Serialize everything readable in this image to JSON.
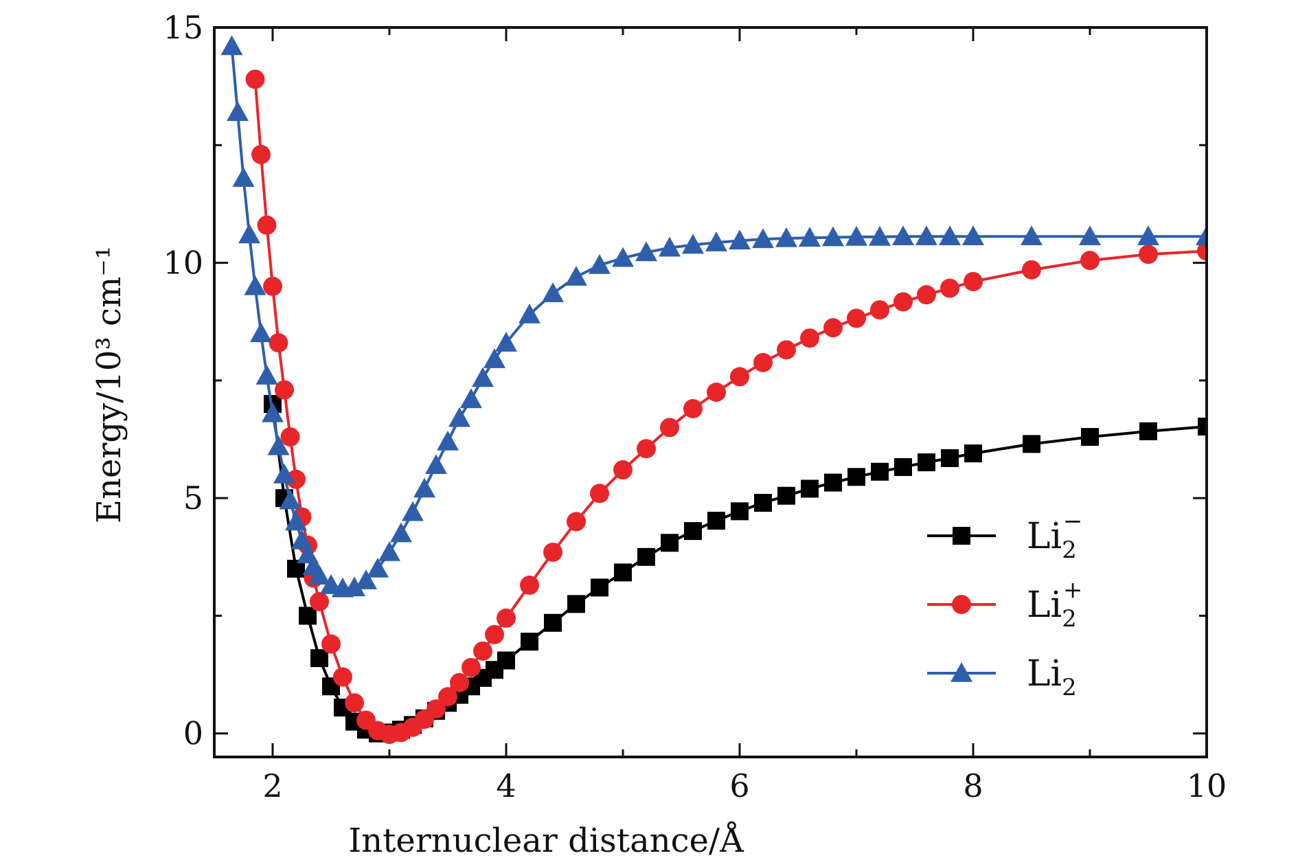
{
  "chart_data": {
    "type": "line",
    "title": "",
    "xlabel": "Internuclear distance/Å",
    "ylabel": "Energy/10³ cm⁻¹",
    "xlim": [
      1.5,
      10
    ],
    "ylim": [
      -0.5,
      15
    ],
    "xticks": [
      2,
      4,
      6,
      8,
      10
    ],
    "yticks": [
      0,
      5,
      10,
      15
    ],
    "xtick_labels": [
      "2",
      "4",
      "6",
      "8",
      "10"
    ],
    "ytick_labels": [
      "0",
      "5",
      "10",
      "15"
    ],
    "grid": false,
    "legend_position": "lower-right",
    "series": [
      {
        "name": "Li₂⁻",
        "legend_base": "Li",
        "legend_sub": "2",
        "legend_sup": "−",
        "color": "#000000",
        "marker": "square",
        "x": [
          2.0,
          2.1,
          2.2,
          2.3,
          2.4,
          2.5,
          2.6,
          2.7,
          2.8,
          2.9,
          3.0,
          3.1,
          3.2,
          3.3,
          3.4,
          3.5,
          3.6,
          3.7,
          3.8,
          3.9,
          4.0,
          4.2,
          4.4,
          4.6,
          4.8,
          5.0,
          5.2,
          5.4,
          5.6,
          5.8,
          6.0,
          6.2,
          6.4,
          6.6,
          6.8,
          7.0,
          7.2,
          7.4,
          7.6,
          7.8,
          8.0,
          8.5,
          9.0,
          9.5,
          10.0
        ],
        "y": [
          7.0,
          5.0,
          3.5,
          2.5,
          1.6,
          1.0,
          0.55,
          0.25,
          0.08,
          0.0,
          0.02,
          0.08,
          0.18,
          0.32,
          0.48,
          0.65,
          0.82,
          1.0,
          1.18,
          1.35,
          1.55,
          1.95,
          2.35,
          2.75,
          3.1,
          3.42,
          3.75,
          4.05,
          4.3,
          4.52,
          4.72,
          4.9,
          5.05,
          5.2,
          5.33,
          5.45,
          5.56,
          5.66,
          5.76,
          5.85,
          5.95,
          6.15,
          6.3,
          6.42,
          6.52
        ]
      },
      {
        "name": "Li₂⁺",
        "legend_base": "Li",
        "legend_sub": "2",
        "legend_sup": "+",
        "color": "#e8262a",
        "marker": "circle",
        "x": [
          1.85,
          1.9,
          1.95,
          2.0,
          2.05,
          2.1,
          2.15,
          2.2,
          2.25,
          2.3,
          2.35,
          2.4,
          2.5,
          2.6,
          2.7,
          2.8,
          2.9,
          3.0,
          3.1,
          3.2,
          3.3,
          3.4,
          3.5,
          3.6,
          3.7,
          3.8,
          3.9,
          4.0,
          4.2,
          4.4,
          4.6,
          4.8,
          5.0,
          5.2,
          5.4,
          5.6,
          5.8,
          6.0,
          6.2,
          6.4,
          6.6,
          6.8,
          7.0,
          7.2,
          7.4,
          7.6,
          7.8,
          8.0,
          8.5,
          9.0,
          9.5,
          10.0
        ],
        "y": [
          13.9,
          12.3,
          10.8,
          9.5,
          8.3,
          7.3,
          6.3,
          5.4,
          4.6,
          4.0,
          3.3,
          2.8,
          1.9,
          1.2,
          0.65,
          0.28,
          0.06,
          -0.02,
          0.02,
          0.13,
          0.3,
          0.52,
          0.78,
          1.08,
          1.4,
          1.75,
          2.1,
          2.45,
          3.15,
          3.85,
          4.5,
          5.1,
          5.6,
          6.05,
          6.5,
          6.9,
          7.25,
          7.58,
          7.88,
          8.15,
          8.4,
          8.62,
          8.82,
          9.0,
          9.17,
          9.32,
          9.46,
          9.6,
          9.85,
          10.05,
          10.18,
          10.25
        ]
      },
      {
        "name": "Li₂",
        "legend_base": "Li",
        "legend_sub": "2",
        "legend_sup": "",
        "color": "#2f5fab",
        "marker": "triangle",
        "x": [
          1.65,
          1.7,
          1.75,
          1.8,
          1.85,
          1.9,
          1.95,
          2.0,
          2.05,
          2.1,
          2.15,
          2.2,
          2.25,
          2.3,
          2.35,
          2.4,
          2.5,
          2.6,
          2.7,
          2.8,
          2.9,
          3.0,
          3.1,
          3.2,
          3.3,
          3.4,
          3.5,
          3.6,
          3.7,
          3.8,
          3.9,
          4.0,
          4.2,
          4.4,
          4.6,
          4.8,
          5.0,
          5.2,
          5.4,
          5.6,
          5.8,
          6.0,
          6.2,
          6.4,
          6.6,
          6.8,
          7.0,
          7.2,
          7.4,
          7.6,
          7.8,
          8.0,
          8.5,
          9.0,
          9.5,
          10.0
        ],
        "y": [
          14.6,
          13.2,
          11.8,
          10.6,
          9.5,
          8.5,
          7.6,
          6.8,
          6.1,
          5.5,
          4.95,
          4.5,
          4.1,
          3.8,
          3.55,
          3.35,
          3.15,
          3.08,
          3.1,
          3.25,
          3.5,
          3.85,
          4.25,
          4.7,
          5.2,
          5.7,
          6.2,
          6.7,
          7.1,
          7.55,
          7.95,
          8.3,
          8.9,
          9.35,
          9.7,
          9.95,
          10.1,
          10.22,
          10.32,
          10.38,
          10.43,
          10.47,
          10.5,
          10.52,
          10.53,
          10.54,
          10.55,
          10.55,
          10.56,
          10.56,
          10.56,
          10.56,
          10.56,
          10.56,
          10.56,
          10.56
        ]
      }
    ]
  }
}
